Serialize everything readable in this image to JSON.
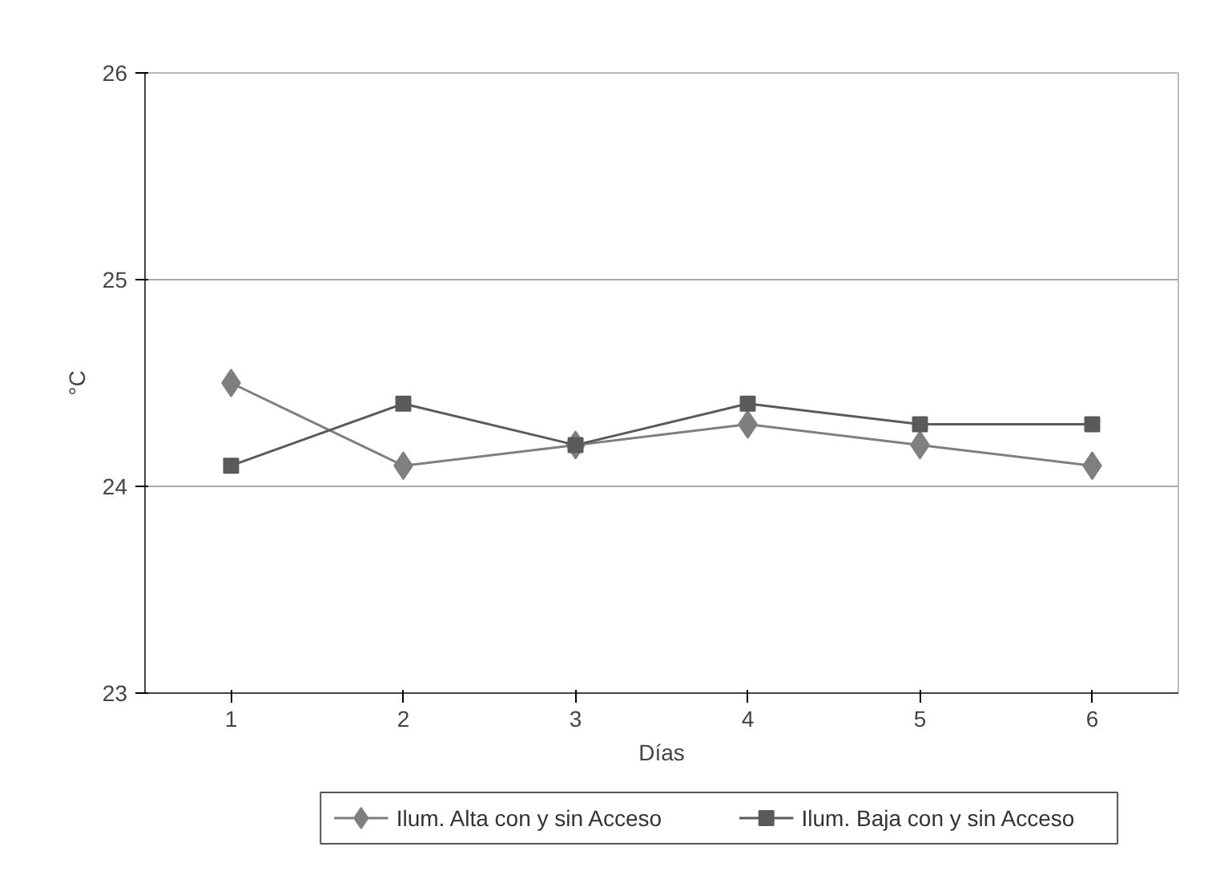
{
  "chart_data": {
    "type": "line",
    "xlabel": "Días",
    "ylabel": "°C",
    "categories": [
      "1",
      "2",
      "3",
      "4",
      "5",
      "6"
    ],
    "series": [
      {
        "name": "Ilum. Alta  con y sin Acceso",
        "color": "#7f7f7f",
        "values": [
          24.5,
          24.1,
          24.2,
          24.3,
          24.2,
          24.1
        ],
        "marker": "diamond"
      },
      {
        "name": "Ilum. Baja con y sin Acceso",
        "color": "#5a5a5a",
        "values": [
          24.1,
          24.4,
          24.2,
          24.4,
          24.3,
          24.3
        ],
        "marker": "square"
      }
    ],
    "ylim": [
      23,
      26
    ],
    "yticks": [
      23,
      24,
      25,
      26
    ],
    "grid": "y",
    "legend": "bottom",
    "line_style": "solid"
  }
}
